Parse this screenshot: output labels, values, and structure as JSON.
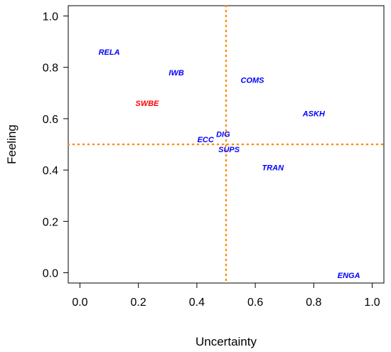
{
  "chart_data": {
    "type": "scatter",
    "xlabel": "Uncertainty",
    "ylabel": "Feeling",
    "xlim": [
      -0.04,
      1.04
    ],
    "ylim": [
      -0.04,
      1.04
    ],
    "x_ticks": [
      0.0,
      0.2,
      0.4,
      0.6,
      0.8,
      1.0
    ],
    "x_tick_labels": [
      "0.0",
      "0.2",
      "0.4",
      "0.6",
      "0.8",
      "1.0"
    ],
    "y_ticks": [
      0.0,
      0.2,
      0.4,
      0.6,
      0.8,
      1.0
    ],
    "y_tick_labels": [
      "0.0",
      "0.2",
      "0.4",
      "0.6",
      "0.8",
      "1.0"
    ],
    "grid": false,
    "reference_lines": {
      "x": 0.5,
      "y": 0.5,
      "color": "#ff8c00",
      "style": "dotted"
    },
    "points": [
      {
        "label": "RELA",
        "x": 0.1,
        "y": 0.86,
        "color": "#0000ff"
      },
      {
        "label": "IWB",
        "x": 0.33,
        "y": 0.78,
        "color": "#0000ff"
      },
      {
        "label": "COMS",
        "x": 0.59,
        "y": 0.75,
        "color": "#0000ff"
      },
      {
        "label": "SWBE",
        "x": 0.23,
        "y": 0.66,
        "color": "#ff0000"
      },
      {
        "label": "ASKH",
        "x": 0.8,
        "y": 0.62,
        "color": "#0000ff"
      },
      {
        "label": "ECC",
        "x": 0.43,
        "y": 0.52,
        "color": "#0000ff"
      },
      {
        "label": "DIG",
        "x": 0.49,
        "y": 0.54,
        "color": "#0000ff"
      },
      {
        "label": "SUPS",
        "x": 0.51,
        "y": 0.48,
        "color": "#0000ff"
      },
      {
        "label": "TRAN",
        "x": 0.66,
        "y": 0.41,
        "color": "#0000ff"
      },
      {
        "label": "ENGA",
        "x": 0.92,
        "y": -0.01,
        "color": "#0000ff"
      }
    ]
  }
}
